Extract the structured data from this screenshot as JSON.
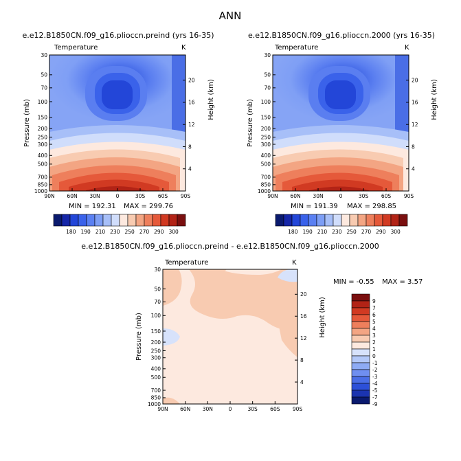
{
  "figure": {
    "title": "ANN",
    "panel_a_title": "e.e12.B1850CN.f09_g16.plioccn.preind (yrs 16-35)",
    "panel_b_title": "e.e12.B1850CN.f09_g16.plioccn.2000 (yrs 16-35)",
    "panel_c_title": "e.e12.B1850CN.f09_g16.plioccn.preind - e.e12.B1850CN.f09_g16.plioccn.2000",
    "variable_label": "Temperature",
    "units_label": "K",
    "y_axis_label": "Pressure (mb)",
    "y2_axis_label": "Height (km)"
  },
  "chart_data": [
    {
      "type": "heatmap",
      "title": "e.e12.B1850CN.f09_g16.plioccn.preind (yrs 16-35)",
      "variable": "Temperature",
      "units": "K",
      "x_ticks": [
        "90N",
        "60N",
        "30N",
        "0",
        "30S",
        "60S",
        "90S"
      ],
      "x_range": [
        90,
        -90
      ],
      "ylabel": "Pressure (mb)",
      "y_ticks": [
        30,
        50,
        70,
        100,
        150,
        200,
        250,
        300,
        400,
        500,
        700,
        850,
        1000
      ],
      "y_range": [
        30,
        1000
      ],
      "y_scale": "log",
      "y2label": "Height (km)",
      "y2_ticks": [
        4,
        8,
        12,
        16,
        20
      ],
      "min": 192.31,
      "max": 299.76,
      "min_text": "MIN = 192.31",
      "max_text": "MAX = 299.76",
      "contour_levels": [
        180,
        190,
        200,
        210,
        220,
        230,
        240,
        250,
        260,
        270,
        280,
        290,
        300
      ],
      "colorbar_labels": [
        "180",
        "190",
        "210",
        "230",
        "250",
        "270",
        "290",
        "300"
      ]
    },
    {
      "type": "heatmap",
      "title": "e.e12.B1850CN.f09_g16.plioccn.2000 (yrs 16-35)",
      "variable": "Temperature",
      "units": "K",
      "x_ticks": [
        "90N",
        "60N",
        "30N",
        "0",
        "30S",
        "60S",
        "90S"
      ],
      "x_range": [
        90,
        -90
      ],
      "ylabel": "Pressure (mb)",
      "y_ticks": [
        30,
        50,
        70,
        100,
        150,
        200,
        250,
        300,
        400,
        500,
        700,
        850,
        1000
      ],
      "y_range": [
        30,
        1000
      ],
      "y_scale": "log",
      "y2label": "Height (km)",
      "y2_ticks": [
        4,
        8,
        12,
        16,
        20
      ],
      "min": 191.39,
      "max": 298.85,
      "min_text": "MIN = 191.39",
      "max_text": "MAX = 298.85",
      "contour_levels": [
        180,
        190,
        200,
        210,
        220,
        230,
        240,
        250,
        260,
        270,
        280,
        290,
        300
      ],
      "colorbar_labels": [
        "180",
        "190",
        "210",
        "230",
        "250",
        "270",
        "290",
        "300"
      ]
    },
    {
      "type": "heatmap",
      "title": "e.e12.B1850CN.f09_g16.plioccn.preind - e.e12.B1850CN.f09_g16.plioccn.2000",
      "variable": "Temperature",
      "units": "K",
      "x_ticks": [
        "90N",
        "60N",
        "30N",
        "0",
        "30S",
        "60S",
        "90S"
      ],
      "x_range": [
        90,
        -90
      ],
      "ylabel": "Pressure (mb)",
      "y_ticks": [
        30,
        50,
        70,
        100,
        150,
        200,
        250,
        300,
        400,
        500,
        700,
        850,
        1000
      ],
      "y_range": [
        30,
        1000
      ],
      "y_scale": "log",
      "y2label": "Height (km)",
      "y2_ticks": [
        4,
        8,
        12,
        16,
        20
      ],
      "min": -0.55,
      "max": 3.57,
      "min_text": "MIN =  -0.55",
      "max_text": "MAX =   3.57",
      "contour_levels": [
        -9,
        -7,
        -5,
        -4,
        -3,
        -2,
        -1,
        0,
        1,
        2,
        3,
        4,
        5,
        6,
        7,
        9
      ],
      "colorbar_labels": [
        "9",
        "7",
        "6",
        "5",
        "4",
        "3",
        "2",
        "1",
        "0",
        "-1",
        "-2",
        "-3",
        "-4",
        "-5",
        "-7",
        "-9"
      ]
    }
  ],
  "colors": {
    "abs_scale": [
      "#0a1a6e",
      "#1526a8",
      "#2346d8",
      "#3a62ea",
      "#5a80f2",
      "#7d9ef5",
      "#a7bff8",
      "#d0ddfb",
      "#fde9df",
      "#f8cbb1",
      "#f3a583",
      "#ee7f5c",
      "#e5593a",
      "#d13a22",
      "#b22316",
      "#7a0f0f"
    ],
    "diff_scale": [
      "#7a0f0f",
      "#b22316",
      "#d13a22",
      "#e5593a",
      "#ee7f5c",
      "#f3a583",
      "#f8cbb1",
      "#fde9df",
      "#d7e2fb",
      "#b3c8f8",
      "#8eabf4",
      "#6f8ff0",
      "#4a6ee6",
      "#2c50d8",
      "#1b34b0",
      "#0a1a6e"
    ]
  }
}
